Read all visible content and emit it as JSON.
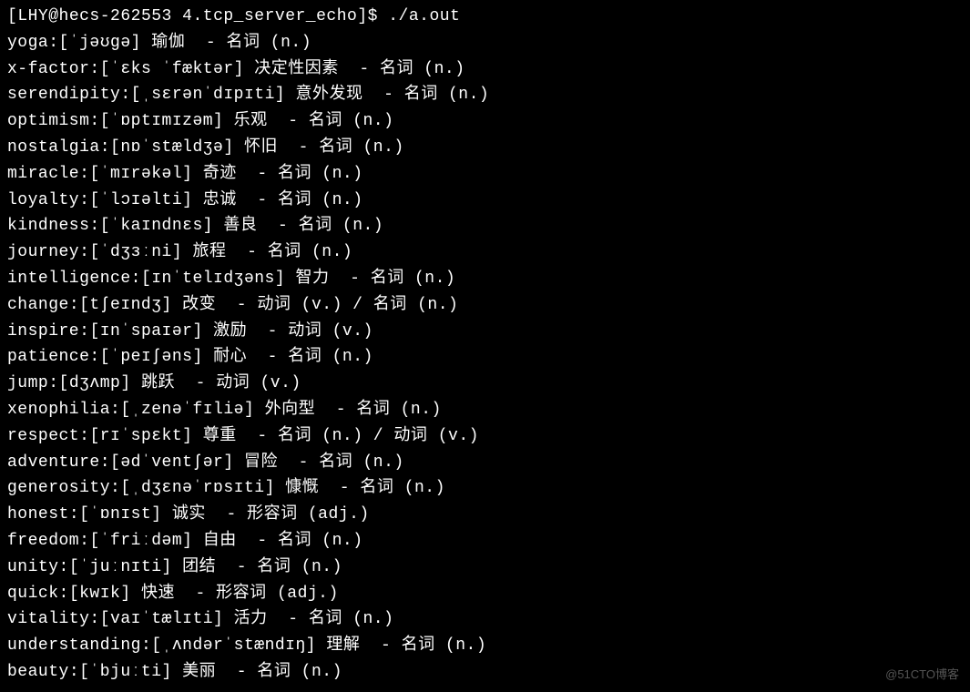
{
  "colors": {
    "background": "#000000",
    "text": "#ffffff",
    "watermark": "#555555"
  },
  "prompt": {
    "user": "LHY",
    "host": "hecs-262553",
    "dir": "4.tcp_server_echo",
    "symbol": "$",
    "command": "./a.out"
  },
  "entries": [
    {
      "word": "yoga",
      "phonetic": "[ˈjəʊɡə]",
      "chinese": "瑜伽",
      "pos": "名词 (n.)"
    },
    {
      "word": "x-factor",
      "phonetic": "[ˈɛks ˈfæktər]",
      "chinese": "决定性因素",
      "pos": "名词 (n.)"
    },
    {
      "word": "serendipity",
      "phonetic": "[ˌsɛrənˈdɪpɪti]",
      "chinese": "意外发现",
      "pos": "名词 (n.)"
    },
    {
      "word": "optimism",
      "phonetic": "[ˈɒptɪmɪzəm]",
      "chinese": "乐观",
      "pos": "名词 (n.)"
    },
    {
      "word": "nostalgia",
      "phonetic": "[nɒˈstældʒə]",
      "chinese": "怀旧",
      "pos": "名词 (n.)"
    },
    {
      "word": "miracle",
      "phonetic": "[ˈmɪrəkəl]",
      "chinese": "奇迹",
      "pos": "名词 (n.)"
    },
    {
      "word": "loyalty",
      "phonetic": "[ˈlɔɪəlti]",
      "chinese": "忠诚",
      "pos": "名词 (n.)"
    },
    {
      "word": "kindness",
      "phonetic": "[ˈkaɪndnɛs]",
      "chinese": "善良",
      "pos": "名词 (n.)"
    },
    {
      "word": "journey",
      "phonetic": "[ˈdʒɜːni]",
      "chinese": "旅程",
      "pos": "名词 (n.)"
    },
    {
      "word": "intelligence",
      "phonetic": "[ɪnˈtelɪdʒəns]",
      "chinese": "智力",
      "pos": "名词 (n.)"
    },
    {
      "word": "change",
      "phonetic": "[tʃeɪndʒ]",
      "chinese": "改变",
      "pos": "动词 (v.) / 名词 (n.)"
    },
    {
      "word": "inspire",
      "phonetic": "[ɪnˈspaɪər]",
      "chinese": "激励",
      "pos": "动词 (v.)"
    },
    {
      "word": "patience",
      "phonetic": "[ˈpeɪʃəns]",
      "chinese": "耐心",
      "pos": "名词 (n.)"
    },
    {
      "word": "jump",
      "phonetic": "[dʒʌmp]",
      "chinese": "跳跃",
      "pos": "动词 (v.)"
    },
    {
      "word": "xenophilia",
      "phonetic": "[ˌzenəˈfɪliə]",
      "chinese": "外向型",
      "pos": "名词 (n.)"
    },
    {
      "word": "respect",
      "phonetic": "[rɪˈspɛkt]",
      "chinese": "尊重",
      "pos": "名词 (n.) / 动词 (v.)"
    },
    {
      "word": "adventure",
      "phonetic": "[ədˈventʃər]",
      "chinese": "冒险",
      "pos": "名词 (n.)"
    },
    {
      "word": "generosity",
      "phonetic": "[ˌdʒɛnəˈrɒsɪti]",
      "chinese": "慷慨",
      "pos": "名词 (n.)"
    },
    {
      "word": "honest",
      "phonetic": "[ˈɒnɪst]",
      "chinese": "诚实",
      "pos": "形容词 (adj.)"
    },
    {
      "word": "freedom",
      "phonetic": "[ˈfriːdəm]",
      "chinese": "自由",
      "pos": "名词 (n.)"
    },
    {
      "word": "unity",
      "phonetic": "[ˈjuːnɪti]",
      "chinese": "团结",
      "pos": "名词 (n.)"
    },
    {
      "word": "quick",
      "phonetic": "[kwɪk]",
      "chinese": "快速",
      "pos": "形容词 (adj.)"
    },
    {
      "word": "vitality",
      "phonetic": "[vaɪˈtælɪti]",
      "chinese": "活力",
      "pos": "名词 (n.)"
    },
    {
      "word": "understanding",
      "phonetic": "[ˌʌndərˈstændɪŋ]",
      "chinese": "理解",
      "pos": "名词 (n.)"
    },
    {
      "word": "beauty",
      "phonetic": "[ˈbjuːti]",
      "chinese": "美丽",
      "pos": "名词 (n.)"
    }
  ],
  "watermark": "@51CTO博客"
}
